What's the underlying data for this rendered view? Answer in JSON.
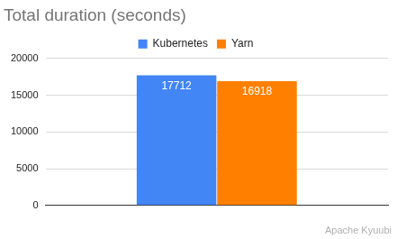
{
  "chart_data": {
    "type": "bar",
    "title": "Total duration (seconds)",
    "categories": [
      null
    ],
    "series": [
      {
        "name": "Kubernetes",
        "color": "#4285f4",
        "values": [
          17712
        ]
      },
      {
        "name": "Yarn",
        "color": "#ff8000",
        "values": [
          16918
        ]
      }
    ],
    "ylim": [
      0,
      20000
    ],
    "yticks": [
      0,
      5000,
      10000,
      15000,
      20000
    ],
    "grid": true,
    "legend": "top",
    "data_labels": true,
    "annotations": [
      "Apache Kyuubi"
    ]
  }
}
